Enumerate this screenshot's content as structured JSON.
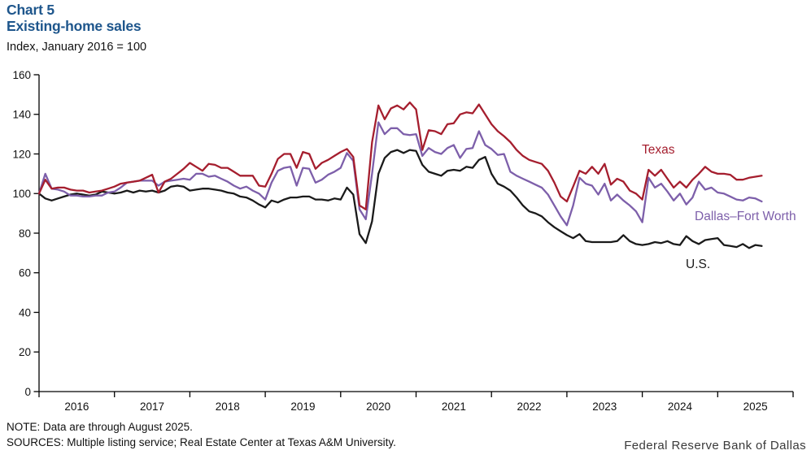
{
  "header": {
    "chart_label": "Chart 5",
    "title": "Existing-home sales",
    "unit_label": "Index,  January  2016 = 100"
  },
  "footer": {
    "note": "NOTE: Data are through August 2025.",
    "sources": "SOURCES: Multiple  listing  service; Real Estate Center at Texas A&M  University.",
    "branding": "Federal Reserve Bank of Dallas"
  },
  "colors": {
    "title_blue": "#1E568C",
    "texas": "#A51E2E",
    "dfw": "#7D5FAA",
    "us": "#1A1A1A",
    "axis": "#000000"
  },
  "chart_data": {
    "type": "line",
    "title": "Existing-home sales",
    "ylabel": "Index, January 2016 = 100",
    "frequency": "monthly",
    "x_start": "2016-01",
    "x_end": "2025-08",
    "x_tick_years": [
      2016,
      2017,
      2018,
      2019,
      2020,
      2021,
      2022,
      2023,
      2024,
      2025
    ],
    "ylim": [
      0,
      160
    ],
    "y_ticks": [
      0,
      20,
      40,
      60,
      80,
      100,
      120,
      140,
      160
    ],
    "grid": false,
    "legend_position": "inline-labels",
    "series": [
      {
        "name": "Texas",
        "color_key": "texas",
        "values": [
          100,
          107,
          102.5,
          103,
          103,
          102,
          101.5,
          101.5,
          100.5,
          101,
          101.5,
          102.5,
          103.5,
          105,
          105.5,
          106,
          106.5,
          108,
          109.5,
          100.5,
          106,
          107.5,
          110,
          112.5,
          115.5,
          113.5,
          111.5,
          115,
          114.5,
          113,
          113,
          111,
          109,
          109,
          109,
          104,
          103.5,
          110,
          117.5,
          120,
          120,
          113,
          121,
          120,
          112.5,
          115.5,
          117,
          119,
          121,
          122.5,
          118.5,
          94,
          92,
          126,
          144.5,
          137.5,
          143,
          144.5,
          142.5,
          146,
          142.5,
          122,
          132,
          131.5,
          130,
          135,
          135.5,
          140,
          141,
          140.5,
          145,
          140,
          135,
          131.5,
          129,
          126,
          122,
          119,
          117,
          116,
          115,
          111.5,
          105.5,
          98.5,
          96,
          103.5,
          111.5,
          110,
          113.5,
          110,
          115,
          104.5,
          107.5,
          106,
          101.5,
          100,
          97,
          112,
          109,
          112,
          107.5,
          103,
          106,
          103,
          107,
          110,
          113.5,
          111,
          110,
          110,
          109.5,
          107,
          107,
          108,
          108.5,
          109
        ]
      },
      {
        "name": "Dallas–Fort Worth",
        "color_key": "dfw",
        "values": [
          100,
          110,
          102.5,
          102,
          101,
          99,
          99,
          98.5,
          98.5,
          99,
          99,
          100.5,
          101,
          103,
          105.5,
          106,
          106.5,
          106.5,
          106.5,
          104,
          106,
          106.5,
          107,
          107.5,
          107,
          110,
          110,
          108.5,
          109,
          107.5,
          106,
          104,
          102.5,
          103.5,
          101.5,
          100,
          97,
          105.5,
          111.5,
          113,
          113.5,
          104,
          113,
          112.5,
          105.5,
          107,
          109.5,
          111,
          113,
          120.5,
          116.5,
          92,
          87,
          110,
          136,
          130,
          133,
          133,
          130,
          129.5,
          130,
          119,
          123,
          121,
          120,
          123,
          124.5,
          118,
          122.5,
          123,
          131.5,
          124.5,
          122.5,
          119.5,
          120,
          111,
          109,
          107.5,
          106,
          104.5,
          103,
          99.5,
          94,
          88.5,
          84,
          94,
          108,
          105,
          104,
          99.5,
          105,
          96.5,
          99.5,
          96.5,
          94,
          91,
          85.5,
          108,
          103,
          105,
          101,
          96.5,
          100,
          94.5,
          98,
          106,
          102,
          103,
          100.5,
          100,
          98.5,
          97,
          96.5,
          98,
          97.5,
          96
        ]
      },
      {
        "name": "U.S.",
        "color_key": "us",
        "values": [
          100,
          97.5,
          96.5,
          97.5,
          98.5,
          99.5,
          100,
          99.5,
          99,
          99.5,
          101,
          100.5,
          100,
          100.5,
          101.5,
          100.5,
          101.5,
          101,
          101.5,
          100.5,
          101.5,
          103.5,
          104,
          103.5,
          101.5,
          102,
          102.5,
          102.5,
          102,
          101.5,
          100.5,
          100,
          98.5,
          98,
          96.5,
          94.5,
          93,
          96.5,
          95.5,
          97,
          98,
          98,
          98.5,
          98.5,
          97,
          97,
          96.5,
          97.5,
          97,
          103,
          99.5,
          79.5,
          75,
          86,
          110,
          118,
          121,
          122,
          120.5,
          122,
          121.5,
          114.5,
          111,
          110,
          109,
          111.5,
          112,
          111.5,
          113.5,
          113,
          117,
          118.5,
          110,
          105,
          103.5,
          101.5,
          98,
          94,
          91,
          90,
          88.5,
          85.5,
          83,
          81,
          79,
          77.5,
          79.5,
          76,
          75.5,
          75.5,
          75.5,
          75.5,
          76,
          79,
          76,
          74.5,
          74,
          74.5,
          75.5,
          75,
          76,
          74.5,
          74,
          78.5,
          76,
          74.5,
          76.5,
          77,
          77.5,
          74,
          73.5,
          73,
          74.5,
          72.5,
          74,
          73.5
        ]
      }
    ]
  }
}
